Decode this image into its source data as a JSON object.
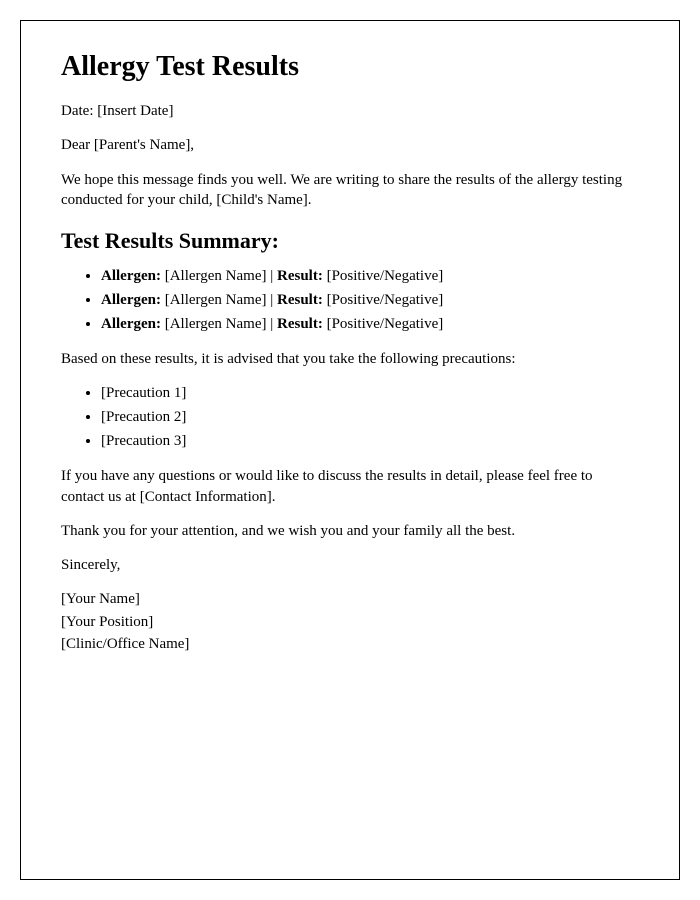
{
  "title": "Allergy Test Results",
  "date_label": "Date: ",
  "date_value": "[Insert Date]",
  "salutation": "Dear [Parent's Name],",
  "intro_paragraph": "We hope this message finds you well. We are writing to share the results of the allergy testing conducted for your child, [Child's Name].",
  "summary_heading": "Test Results Summary:",
  "allergen_label": "Allergen:",
  "result_label": "Result:",
  "results": [
    {
      "allergen": " [Allergen Name] | ",
      "result": " [Positive/Negative]"
    },
    {
      "allergen": " [Allergen Name] | ",
      "result": " [Positive/Negative]"
    },
    {
      "allergen": " [Allergen Name] | ",
      "result": " [Positive/Negative]"
    }
  ],
  "precautions_intro": "Based on these results, it is advised that you take the following precautions:",
  "precautions": [
    "[Precaution 1]",
    "[Precaution 2]",
    "[Precaution 3]"
  ],
  "contact_paragraph": "If you have any questions or would like to discuss the results in detail, please feel free to contact us at [Contact Information].",
  "thanks_paragraph": "Thank you for your attention, and we wish you and your family all the best.",
  "closing": "Sincerely,",
  "signature": {
    "name": "[Your Name]",
    "position": "[Your Position]",
    "clinic": "[Clinic/Office Name]"
  },
  "colors": {
    "text": "#000000",
    "background": "#ffffff",
    "border": "#000000"
  }
}
